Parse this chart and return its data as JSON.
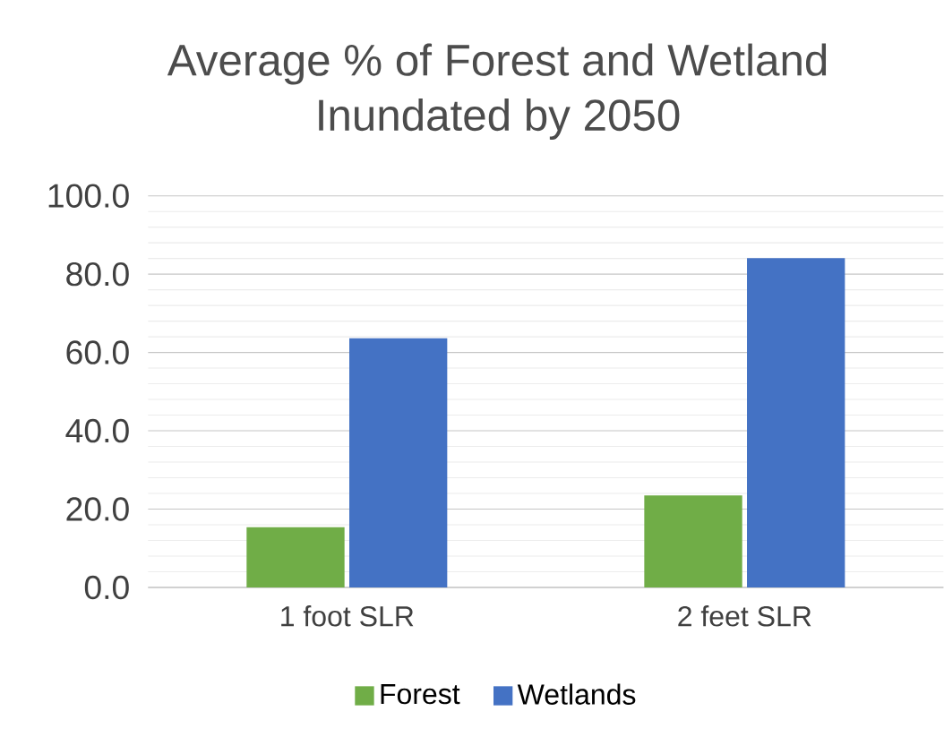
{
  "chart_data": {
    "type": "bar",
    "title": "Average % of Forest and Wetland Inundated by 2050",
    "categories": [
      "1 foot SLR",
      "2 feet SLR"
    ],
    "series": [
      {
        "name": "Forest",
        "color": "#70ad47",
        "values": [
          15.4,
          23.5
        ]
      },
      {
        "name": "Wetlands",
        "color": "#4472c4",
        "values": [
          63.6,
          84.1
        ]
      }
    ],
    "ylim": [
      0,
      100
    ],
    "yticks": [
      {
        "value": 0,
        "label": "0.0"
      },
      {
        "value": 20,
        "label": "20.0"
      },
      {
        "value": 40,
        "label": "40.0"
      },
      {
        "value": 60,
        "label": "60.0"
      },
      {
        "value": 80,
        "label": "80.0"
      },
      {
        "value": 100,
        "label": "100.0"
      }
    ],
    "grid": "y",
    "legend": "bottom"
  }
}
